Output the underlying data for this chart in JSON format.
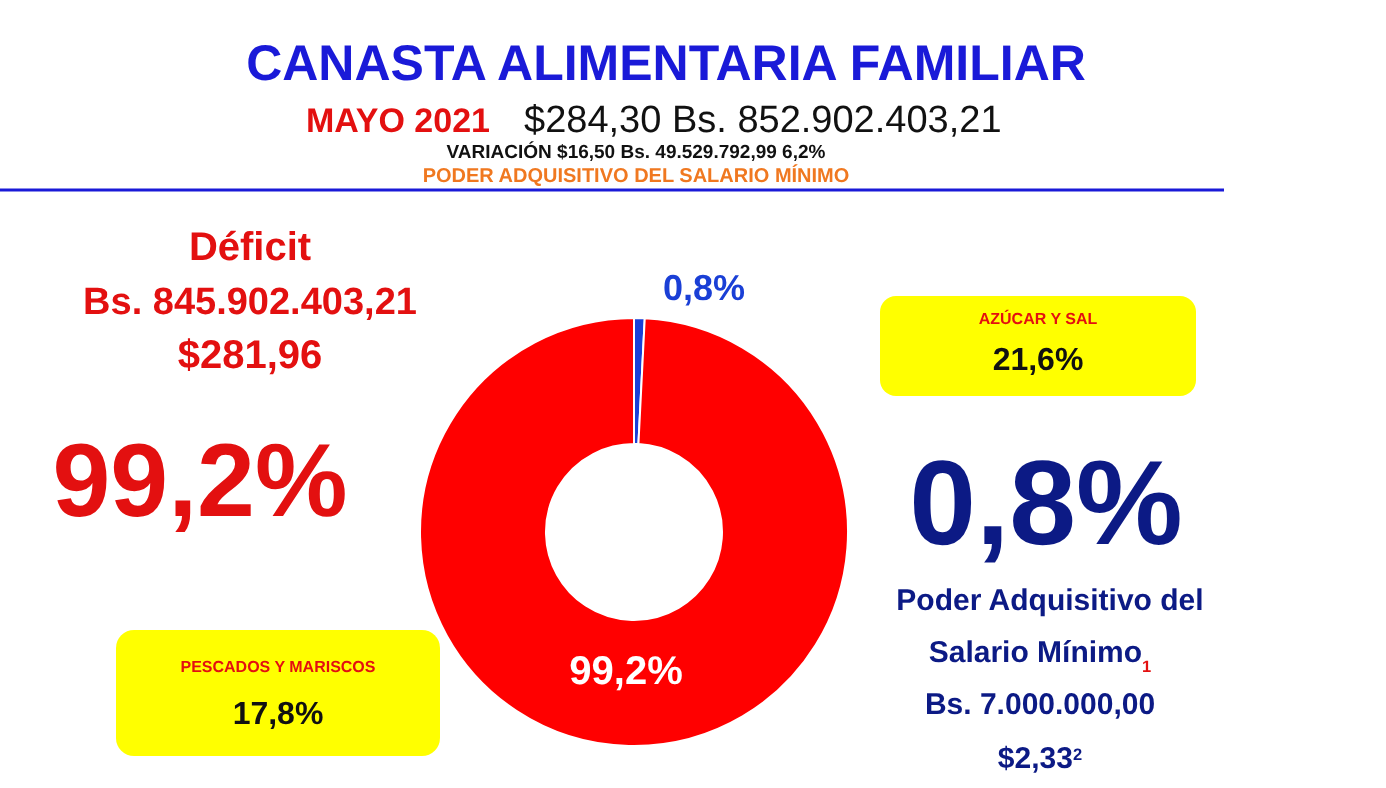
{
  "chart_data": {
    "type": "donut",
    "title": "CANASTA ALIMENTARIA FAMILIAR",
    "subtitle": "MAYO 2021",
    "categories": [
      null,
      null
    ],
    "values": [
      0.8,
      99.2
    ],
    "colors": [
      "#1a3fd6",
      "#ff0000"
    ],
    "value_labels": [
      "0,8%",
      "99,2%"
    ],
    "annotations": [
      "$284,30  Bs. 852.902.403,21",
      "VARIACIÓN   $16,50  Bs. 49.529.792,99  6,2%",
      "PODER ADQUISITIVO DEL SALARIO MÍNIMO",
      "Déficit",
      "Bs. 845.902.403,21",
      "$281,96",
      "99,2%",
      "AZÚCAR Y SAL",
      "21,6%",
      "PESCADOS Y MARISCOS",
      "17,8%",
      "0,8%",
      "Poder Adquisitivo del",
      "Salario Mínimo$_{1}$",
      "Bs. 7.000.000,00",
      "$2,33$^{2}$"
    ]
  }
}
